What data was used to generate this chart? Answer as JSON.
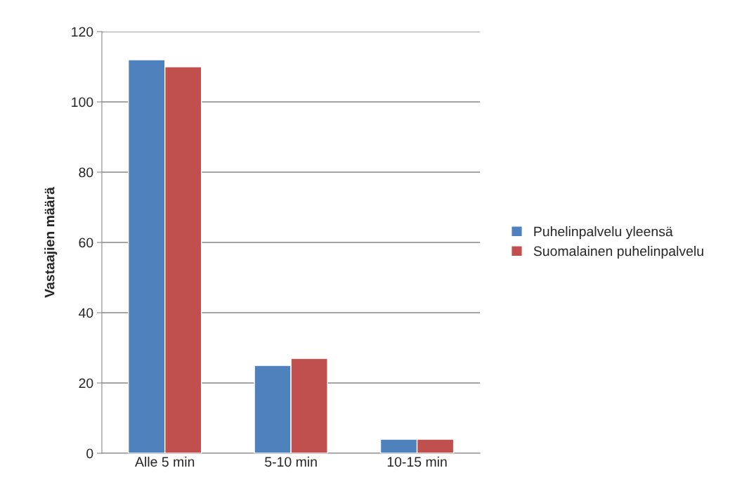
{
  "chart_data": {
    "type": "bar",
    "ylabel": "Vastaajien määrä",
    "categories": [
      "Alle 5 min",
      "5-10 min",
      "10-15 min"
    ],
    "series": [
      {
        "name": "Puhelinpalvelu yleensä",
        "color": "#4f81bd",
        "values": [
          112,
          25,
          4
        ]
      },
      {
        "name": "Suomalainen puhelinpalvelu",
        "color": "#c0504d",
        "values": [
          110,
          27,
          4
        ]
      }
    ],
    "ylim": [
      0,
      120
    ],
    "yticks": [
      0,
      20,
      40,
      60,
      80,
      100,
      120
    ],
    "grid": "y",
    "legend": "right"
  }
}
